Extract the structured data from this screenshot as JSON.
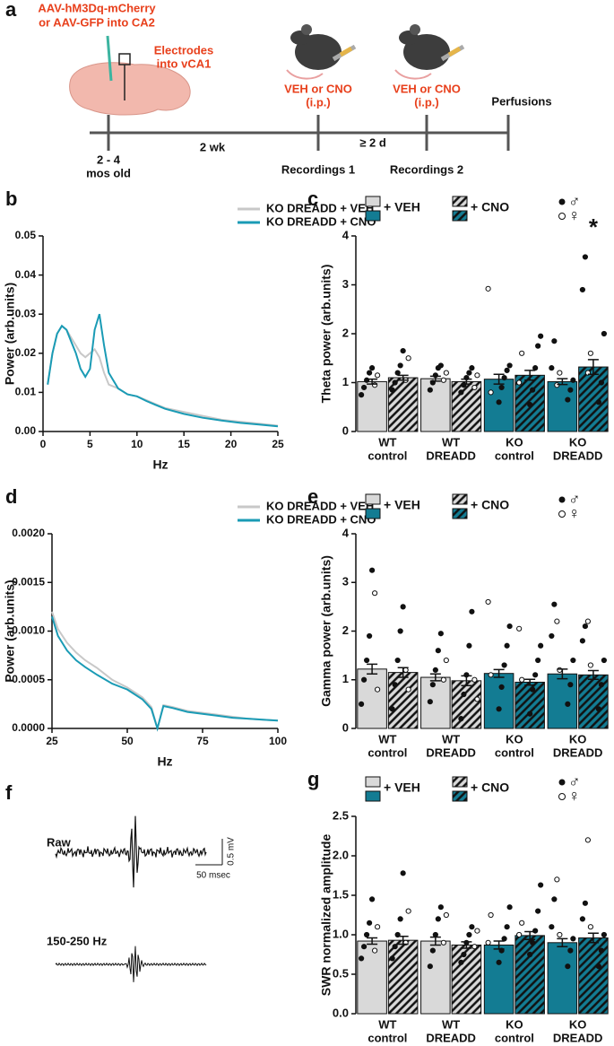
{
  "timeline": {
    "panel_label": "a",
    "injection": [
      "AAV-hM3Dq-mCherry",
      "or AAV-GFP into CA2"
    ],
    "electrodes": [
      "Electrodes",
      "into vCA1"
    ],
    "treatment_1": [
      "VEH or CNO",
      "(i.p.)"
    ],
    "treatment_2": [
      "VEH or CNO",
      "(i.p.)"
    ],
    "end": "Perfusions",
    "start": [
      "2 - 4",
      "mos old"
    ],
    "interval_1": "2 wk",
    "interval_2": "≥ 2 d",
    "recording_1": "Recordings 1",
    "recording_2": "Recordings 2"
  },
  "traces": {
    "panel_label": "f",
    "raw": "Raw",
    "filtered": "150-250 Hz",
    "scale_y": "0.5 mV",
    "scale_x": "50 msec"
  },
  "chart_data": [
    {
      "type": "line",
      "panel_label": "b",
      "ylabel": "Power (arb.units)",
      "xlabel": "Hz",
      "xlim": [
        0,
        25
      ],
      "ylim": [
        0,
        0.05
      ],
      "xticks": [
        0,
        5,
        10,
        15,
        20,
        25
      ],
      "yticks": [
        {
          "value": 0,
          "label": "0.00"
        },
        0.01,
        0.02,
        0.03,
        0.04,
        0.05
      ],
      "x": [
        0.5,
        1,
        1.5,
        2,
        2.5,
        3,
        3.5,
        4,
        4.5,
        5,
        5.5,
        6,
        6.5,
        7,
        8,
        9,
        10,
        11,
        12,
        13,
        15,
        17,
        19,
        21,
        23,
        25
      ],
      "series": [
        {
          "name": "KO DREADD + VEH",
          "color": "#c8c8c8",
          "values": [
            0.012,
            0.02,
            0.025,
            0.027,
            0.026,
            0.024,
            0.022,
            0.02,
            0.019,
            0.02,
            0.021,
            0.019,
            0.015,
            0.012,
            0.011,
            0.0095,
            0.009,
            0.008,
            0.007,
            0.006,
            0.005,
            0.004,
            0.003,
            0.0025,
            0.002,
            0.0015
          ]
        },
        {
          "name": "KO DREADD + CNO",
          "color": "#1a9bb5",
          "values": [
            0.012,
            0.02,
            0.025,
            0.027,
            0.026,
            0.023,
            0.02,
            0.016,
            0.014,
            0.016,
            0.026,
            0.03,
            0.022,
            0.015,
            0.011,
            0.0095,
            0.009,
            0.0078,
            0.0068,
            0.0058,
            0.0045,
            0.0035,
            0.0028,
            0.0022,
            0.0018,
            0.0013
          ]
        }
      ]
    },
    {
      "type": "bar",
      "panel_label": "c",
      "ylabel": "Theta power (arb.units)",
      "ylim": [
        0,
        4
      ],
      "yticks": [
        0,
        1,
        2,
        3,
        4
      ],
      "annotation": "*",
      "sex_legend": [
        "♂",
        "♀"
      ],
      "categories": [
        [
          "WT",
          "control"
        ],
        [
          "WT",
          "DREADD"
        ],
        [
          "KO",
          "control"
        ],
        [
          "KO",
          "DREADD"
        ]
      ],
      "series": [
        {
          "name": "+ VEH",
          "colors": [
            "#d9d9d9",
            "#d9d9d9",
            "#137c93",
            "#137c93"
          ],
          "hatch": false,
          "values": [
            1.02,
            1.08,
            1.07,
            1.02
          ],
          "errors": [
            0.05,
            0.05,
            0.1,
            0.06
          ],
          "points": [
            [
              0.75,
              0.9,
              1.05,
              1.2,
              1.3
            ],
            [
              0.85,
              1.0,
              1.15,
              1.3,
              1.35
            ],
            [
              0.6,
              0.9,
              1.1,
              1.25,
              1.35
            ],
            [
              0.65,
              0.85,
              1.05,
              1.3,
              1.85
            ]
          ],
          "open_points": [
            [
              0.95,
              1.15
            ],
            [
              1.05,
              1.2
            ],
            [
              2.92,
              0.8
            ],
            [
              0.95,
              1.2
            ]
          ]
        },
        {
          "name": "+ CNO",
          "colors": [
            "#d9d9d9",
            "#d9d9d9",
            "#137c93",
            "#137c93"
          ],
          "hatch": true,
          "values": [
            1.1,
            1.02,
            1.15,
            1.32
          ],
          "errors": [
            0.05,
            0.05,
            0.1,
            0.15
          ],
          "points": [
            [
              0.85,
              1.0,
              1.2,
              1.35,
              1.65
            ],
            [
              0.8,
              0.95,
              1.1,
              1.2,
              1.3
            ],
            [
              0.55,
              0.85,
              1.3,
              1.75,
              1.95
            ],
            [
              0.6,
              1.0,
              2.0,
              2.9,
              3.57
            ]
          ],
          "open_points": [
            [
              1.05,
              1.5
            ],
            [
              0.9,
              1.15
            ],
            [
              1.0,
              1.6
            ],
            [
              1.2,
              1.6
            ]
          ]
        }
      ]
    },
    {
      "type": "line",
      "panel_label": "d",
      "ylabel": "Power (arb.units)",
      "xlabel": "Hz",
      "xlim": [
        25,
        100
      ],
      "ylim": [
        0,
        0.002
      ],
      "xticks": [
        25,
        50,
        75,
        100
      ],
      "yticks": [
        {
          "value": 0,
          "label": "0.0000"
        },
        {
          "value": 0.0005,
          "label": "0.0005"
        },
        {
          "value": 0.001,
          "label": "0.0010"
        },
        {
          "value": 0.0015,
          "label": "0.0015"
        },
        {
          "value": 0.002,
          "label": "0.0020"
        }
      ],
      "x": [
        25,
        27,
        30,
        33,
        36,
        40,
        45,
        50,
        55,
        58,
        60,
        62,
        65,
        70,
        75,
        80,
        85,
        90,
        95,
        100
      ],
      "series": [
        {
          "name": "KO DREADD + VEH",
          "color": "#c8c8c8",
          "values": [
            0.0012,
            0.00102,
            0.00088,
            0.00078,
            0.0007,
            0.00062,
            0.0005,
            0.00042,
            0.00032,
            0.00022,
            0,
            0.00024,
            0.00022,
            0.00018,
            0.00016,
            0.00014,
            0.00012,
            0.0001,
            9e-05,
            8e-05
          ]
        },
        {
          "name": "KO DREADD + CNO",
          "color": "#1a9bb5",
          "values": [
            0.00115,
            0.00095,
            0.0008,
            0.0007,
            0.00063,
            0.00055,
            0.00046,
            0.0004,
            0.0003,
            0.0002,
            0,
            0.00023,
            0.00021,
            0.00017,
            0.00015,
            0.00013,
            0.00011,
            0.0001,
            9e-05,
            8e-05
          ]
        }
      ]
    },
    {
      "type": "bar",
      "panel_label": "e",
      "ylabel": "Gamma power (arb.units)",
      "ylim": [
        0,
        4
      ],
      "yticks": [
        0,
        1,
        2,
        3,
        4
      ],
      "sex_legend": [
        "♂",
        "♀"
      ],
      "categories": [
        [
          "WT",
          "control"
        ],
        [
          "WT",
          "DREADD"
        ],
        [
          "KO",
          "control"
        ],
        [
          "KO",
          "DREADD"
        ]
      ],
      "series": [
        {
          "name": "+ VEH",
          "colors": [
            "#d9d9d9",
            "#d9d9d9",
            "#137c93",
            "#137c93"
          ],
          "hatch": false,
          "values": [
            1.22,
            1.05,
            1.13,
            1.12
          ],
          "errors": [
            0.1,
            0.07,
            0.08,
            0.1
          ],
          "points": [
            [
              0.5,
              1.0,
              1.4,
              1.9,
              3.25
            ],
            [
              0.55,
              0.9,
              1.2,
              1.6,
              1.95
            ],
            [
              0.4,
              0.85,
              1.3,
              1.7,
              2.1
            ],
            [
              0.5,
              0.9,
              1.4,
              1.9,
              2.55
            ]
          ],
          "open_points": [
            [
              2.78,
              0.8
            ],
            [
              1.0,
              1.4
            ],
            [
              2.6,
              1.1
            ],
            [
              2.2,
              1.2
            ]
          ]
        },
        {
          "name": "+ CNO",
          "colors": [
            "#d9d9d9",
            "#d9d9d9",
            "#137c93",
            "#137c93"
          ],
          "hatch": true,
          "values": [
            1.15,
            0.98,
            0.95,
            1.1
          ],
          "errors": [
            0.1,
            0.1,
            0.06,
            0.09
          ],
          "points": [
            [
              0.4,
              0.9,
              1.4,
              2.0,
              2.5
            ],
            [
              0.2,
              0.7,
              1.1,
              1.7,
              2.4
            ],
            [
              0.3,
              0.8,
              1.1,
              1.4,
              1.7
            ],
            [
              0.4,
              0.9,
              1.4,
              1.8,
              2.1
            ]
          ],
          "open_points": [
            [
              1.2,
              0.8
            ],
            [
              1.0,
              0.6
            ],
            [
              2.05,
              1.0
            ],
            [
              2.2,
              1.3
            ]
          ]
        }
      ]
    },
    {
      "type": "bar",
      "panel_label": "g",
      "ylabel": "SWR normalized amplitude",
      "ylim": [
        0,
        2.5
      ],
      "yticks": [
        {
          "value": 0,
          "label": "0.0"
        },
        0.5,
        {
          "value": 1,
          "label": "1.0"
        },
        1.5,
        {
          "value": 2,
          "label": "2.0"
        },
        2.5
      ],
      "sex_legend": [
        "♂",
        "♀"
      ],
      "categories": [
        [
          "WT",
          "control"
        ],
        [
          "WT",
          "DREADD"
        ],
        [
          "KO",
          "control"
        ],
        [
          "KO",
          "DREADD"
        ]
      ],
      "series": [
        {
          "name": "+ VEH",
          "colors": [
            "#d9d9d9",
            "#d9d9d9",
            "#137c93",
            "#137c93"
          ],
          "hatch": false,
          "values": [
            0.92,
            0.92,
            0.87,
            0.9
          ],
          "errors": [
            0.04,
            0.05,
            0.05,
            0.05
          ],
          "points": [
            [
              0.7,
              0.85,
              1.0,
              1.15,
              1.45
            ],
            [
              0.6,
              0.8,
              1.0,
              1.2,
              1.35
            ],
            [
              0.65,
              0.8,
              0.95,
              1.1,
              1.35
            ],
            [
              0.6,
              0.8,
              0.95,
              1.1,
              1.45
            ]
          ],
          "open_points": [
            [
              0.8,
              1.1
            ],
            [
              0.9,
              1.25
            ],
            [
              0.9,
              1.25
            ],
            [
              1.7,
              1.0
            ]
          ]
        },
        {
          "name": "+ CNO",
          "colors": [
            "#d9d9d9",
            "#d9d9d9",
            "#137c93",
            "#137c93"
          ],
          "hatch": true,
          "values": [
            0.93,
            0.87,
            0.99,
            0.96
          ],
          "errors": [
            0.05,
            0.04,
            0.05,
            0.06
          ],
          "points": [
            [
              0.7,
              0.85,
              1.0,
              1.2,
              1.78
            ],
            [
              0.65,
              0.75,
              0.9,
              1.0,
              1.1
            ],
            [
              0.75,
              0.9,
              1.05,
              1.3,
              1.63
            ],
            [
              0.6,
              0.8,
              1.0,
              1.2,
              1.4
            ]
          ],
          "open_points": [
            [
              0.9,
              1.3
            ],
            [
              0.85,
              1.05
            ],
            [
              1.0,
              1.15
            ],
            [
              2.2,
              1.1
            ]
          ]
        }
      ]
    }
  ]
}
